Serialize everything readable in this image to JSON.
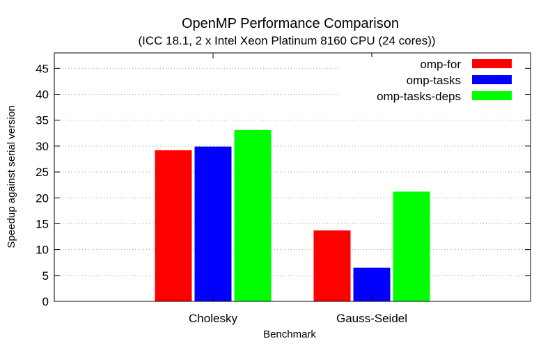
{
  "chart_data": {
    "type": "bar",
    "title": "OpenMP Performance Comparison",
    "subtitle": "(ICC 18.1, 2 x Intel Xeon Platinum 8160 CPU (24 cores))",
    "xlabel": "Benchmark",
    "ylabel": "Speedup against serial version",
    "categories": [
      "Cholesky",
      "Gauss-Seidel"
    ],
    "series": [
      {
        "name": "omp-for",
        "color": "#ff0000",
        "values": [
          29.2,
          13.7
        ]
      },
      {
        "name": "omp-tasks",
        "color": "#0000ff",
        "values": [
          29.9,
          6.5
        ]
      },
      {
        "name": "omp-tasks-deps",
        "color": "#00ff00",
        "values": [
          33.1,
          21.2
        ]
      }
    ],
    "ylim": [
      0,
      48
    ],
    "yticks": [
      "0",
      "5",
      "10",
      "15",
      "20",
      "25",
      "30",
      "35",
      "40",
      "45"
    ],
    "grid": true,
    "legend_position": "top-right"
  }
}
